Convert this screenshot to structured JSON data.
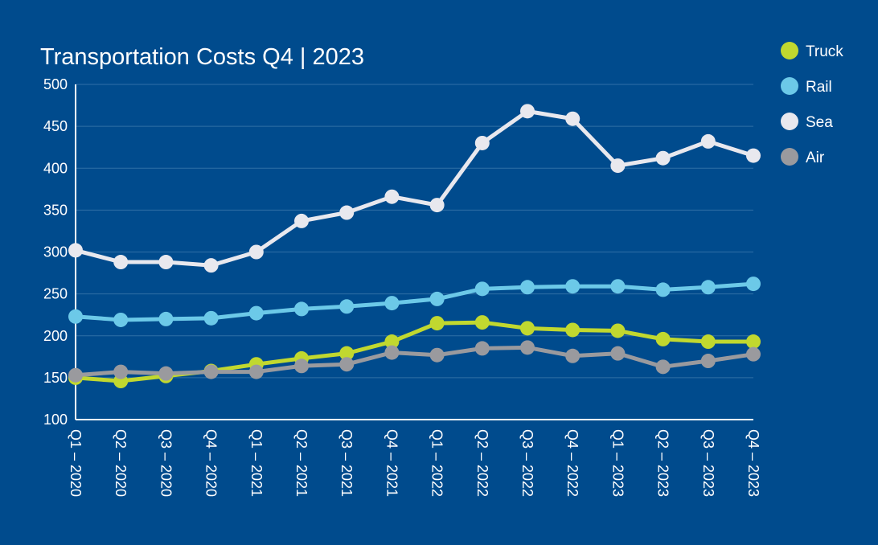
{
  "chart_data": {
    "type": "line",
    "title": "Transportation Costs Q4 | 2023",
    "xlabel": "",
    "ylabel": "",
    "ylim": [
      100,
      500
    ],
    "yticks": [
      100,
      150,
      200,
      250,
      300,
      350,
      400,
      450,
      500
    ],
    "grid": true,
    "legend": "right",
    "categories": [
      "Q1 – 2020",
      "Q2 – 2020",
      "Q3 – 2020",
      "Q4 – 2020",
      "Q1 – 2021",
      "Q2 – 2021",
      "Q3 – 2021",
      "Q4 – 2021",
      "Q1 – 2022",
      "Q2 – 2022",
      "Q3 – 2022",
      "Q4 – 2022",
      "Q1 – 2023",
      "Q2 – 2023",
      "Q3 – 2023",
      "Q4 – 2023"
    ],
    "series": [
      {
        "name": "Truck",
        "color": "#c1d82f",
        "values": [
          150,
          146,
          152,
          158,
          166,
          173,
          179,
          193,
          215,
          216,
          209,
          207,
          206,
          196,
          193,
          193
        ]
      },
      {
        "name": "Rail",
        "color": "#6cc9e8",
        "values": [
          223,
          219,
          220,
          221,
          227,
          232,
          235,
          239,
          244,
          256,
          258,
          259,
          259,
          255,
          258,
          262
        ]
      },
      {
        "name": "Sea",
        "color": "#e8e8ee",
        "values": [
          302,
          288,
          288,
          284,
          300,
          337,
          347,
          366,
          356,
          430,
          468,
          459,
          403,
          412,
          432,
          415
        ]
      },
      {
        "name": "Air",
        "color": "#9a9a9e",
        "values": [
          153,
          157,
          155,
          157,
          157,
          164,
          166,
          180,
          177,
          185,
          186,
          176,
          179,
          163,
          170,
          178
        ]
      }
    ]
  }
}
